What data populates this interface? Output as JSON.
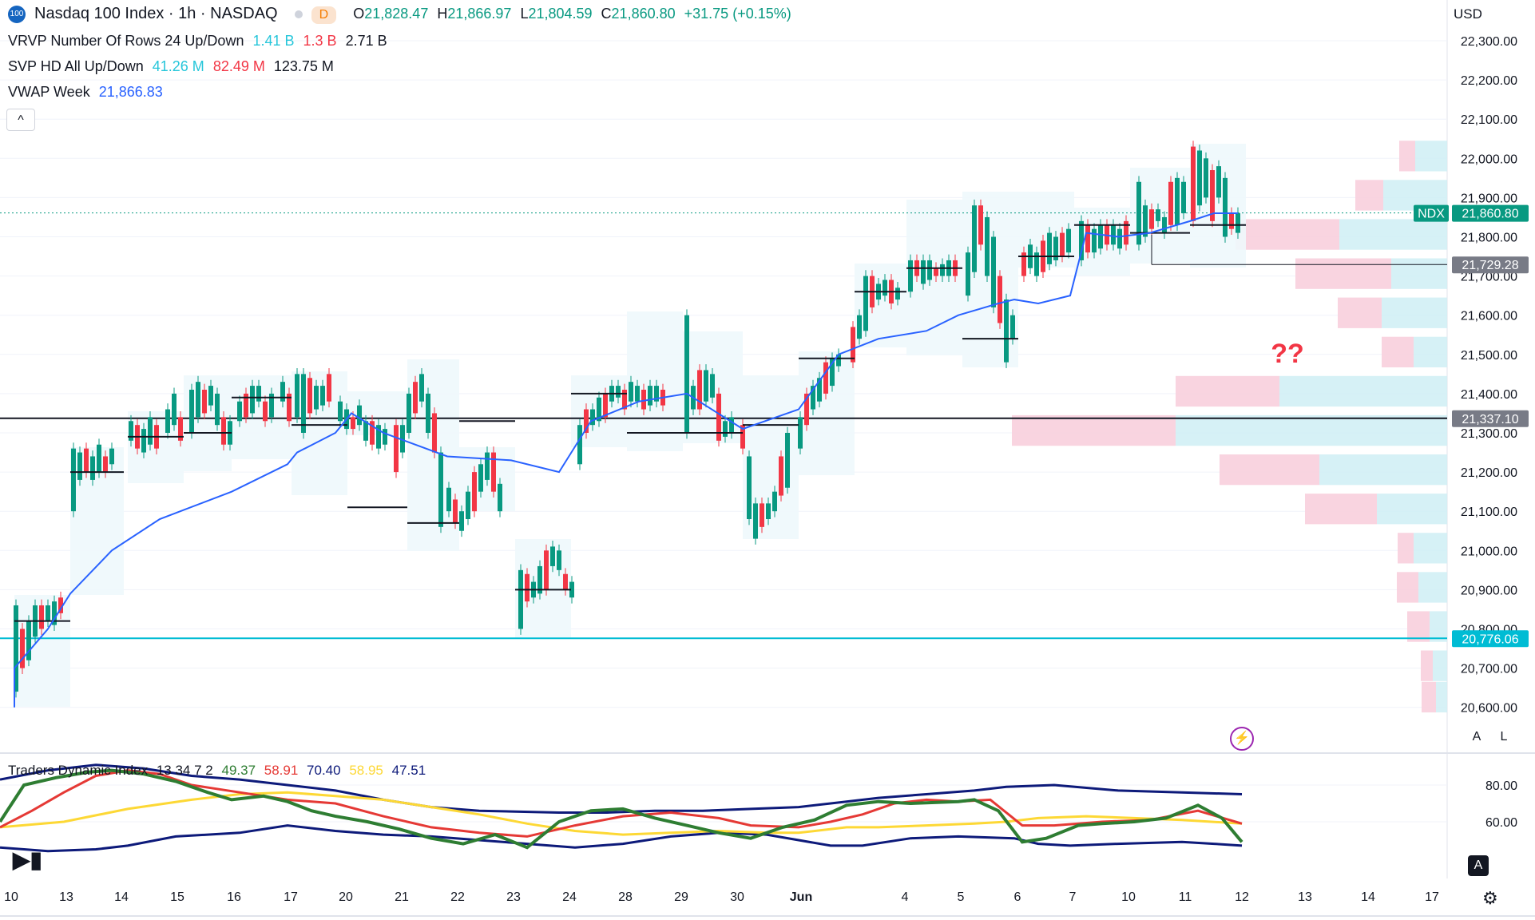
{
  "header": {
    "logo_text": "100",
    "symbol_title": "Nasdaq 100 Index · 1h · NASDAQ",
    "d_badge": "D",
    "ohlc": {
      "o_label": "O",
      "o": "21,828.47",
      "h_label": "H",
      "h": "21,866.97",
      "l_label": "L",
      "l": "21,804.59",
      "c_label": "C",
      "c": "21,860.80",
      "change": "+31.75 (+0.15%)"
    },
    "currency": "USD"
  },
  "indicators": [
    {
      "name": "VRVP Number Of Rows 24 Up/Down",
      "v1": "1.41 B",
      "v2": "1.3 B",
      "v3": "2.71 B"
    },
    {
      "name": "SVP HD All Up/Down",
      "v1": "41.26 M",
      "v2": "82.49 M",
      "v3": "123.75 M"
    },
    {
      "name": "VWAP Week",
      "v1": "21,866.83"
    }
  ],
  "price_axis": {
    "ticks": [
      "22,300.00",
      "22,200.00",
      "22,100.00",
      "22,000.00",
      "21,900.00",
      "21,800.00",
      "21,700.00",
      "21,600.00",
      "21,500.00",
      "21,400.00",
      "21,300.00",
      "21,200.00",
      "21,100.00",
      "21,000.00",
      "20,900.00",
      "20,800.00",
      "20,700.00",
      "20,600.00"
    ],
    "tick_values": [
      22300,
      22200,
      22100,
      22000,
      21900,
      21800,
      21700,
      21600,
      21500,
      21400,
      21300,
      21200,
      21100,
      21000,
      20900,
      20800,
      20700,
      20600
    ],
    "ndx_tag": "NDX",
    "last_price": "21,860.80",
    "level_1": "21,729.28",
    "level_2": "21,337.10",
    "level_3": "20,776.06",
    "level_values": [
      21860.8,
      21729.28,
      21337.1,
      20776.06
    ]
  },
  "annotation": "??",
  "tdi": {
    "name": "Traders Dynamic Index",
    "params": "13 34 7 2",
    "v1": "49.37",
    "v2": "58.91",
    "v3": "70.40",
    "v4": "58.95",
    "v5": "47.51",
    "ticks": [
      "80.00",
      "60.00"
    ]
  },
  "time_axis": [
    "10",
    "13",
    "14",
    "15",
    "16",
    "17",
    "20",
    "21",
    "22",
    "23",
    "24",
    "28",
    "29",
    "30",
    "Jun",
    "4",
    "5",
    "6",
    "7",
    "10",
    "11",
    "12",
    "13",
    "14",
    "17"
  ],
  "buttons": {
    "collapse": "^",
    "auto": "A",
    "log": "L",
    "auto2": "A"
  },
  "colors": {
    "up": "#089981",
    "down": "#f23645",
    "vwap": "#2962ff",
    "cyan": "#00bcd4",
    "poc_up": "#b2ebf2",
    "poc_down": "#f8bbd0",
    "tdi_green": "#2e7d32",
    "tdi_red": "#e53935",
    "tdi_yellow": "#fdd835",
    "tdi_band": "#0d1a7a"
  }
}
